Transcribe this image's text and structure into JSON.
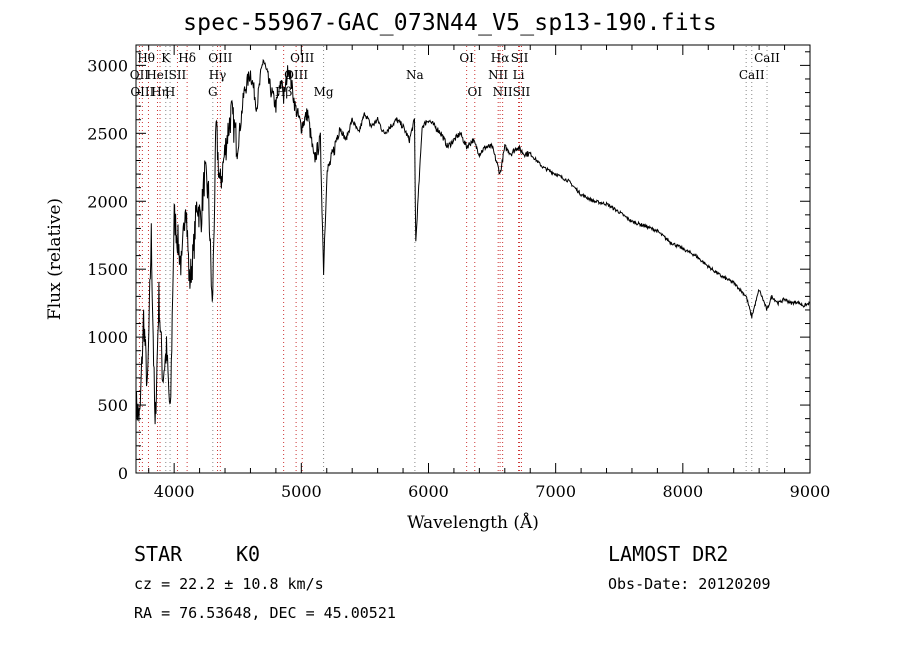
{
  "chart_data": {
    "type": "line",
    "title": "spec-55967-GAC_073N44_V5_sp13-190.fits",
    "xlabel": "Wavelength (Å)",
    "ylabel": "Flux (relative)",
    "xlim": [
      3700,
      9000
    ],
    "ylim": [
      0,
      3150
    ],
    "xticks": [
      4000,
      5000,
      6000,
      7000,
      8000,
      9000
    ],
    "yticks": [
      0,
      500,
      1000,
      1500,
      2000,
      2500,
      3000
    ],
    "grid": false,
    "series": [
      {
        "color": "#000000",
        "x": [
          3700,
          3730,
          3760,
          3790,
          3820,
          3850,
          3880,
          3910,
          3940,
          3970,
          4000,
          4030,
          4060,
          4090,
          4120,
          4150,
          4180,
          4210,
          4240,
          4270,
          4300,
          4330,
          4360,
          4390,
          4420,
          4450,
          4500,
          4550,
          4600,
          4650,
          4700,
          4750,
          4800,
          4850,
          4861,
          4900,
          4950,
          5000,
          5050,
          5100,
          5150,
          5175,
          5200,
          5250,
          5300,
          5350,
          5400,
          5450,
          5500,
          5550,
          5600,
          5650,
          5700,
          5750,
          5800,
          5850,
          5890,
          5900,
          5950,
          6000,
          6050,
          6100,
          6150,
          6200,
          6250,
          6300,
          6350,
          6400,
          6450,
          6500,
          6563,
          6600,
          6650,
          6700,
          6750,
          6800,
          6850,
          6900,
          7000,
          7100,
          7200,
          7300,
          7400,
          7500,
          7600,
          7700,
          7800,
          7900,
          8000,
          8100,
          8200,
          8300,
          8400,
          8498,
          8542,
          8600,
          8662,
          8700,
          8750,
          8800,
          8850,
          8900,
          8950,
          9000
        ],
        "y": [
          500,
          400,
          1150,
          600,
          1750,
          300,
          1300,
          700,
          900,
          400,
          1900,
          1700,
          1500,
          2050,
          1400,
          1600,
          2000,
          1850,
          2200,
          2050,
          1200,
          2550,
          2100,
          2300,
          2500,
          2650,
          2400,
          2800,
          2950,
          2700,
          3050,
          2850,
          2700,
          2900,
          2750,
          3000,
          2700,
          2550,
          2650,
          2300,
          2450,
          1500,
          2200,
          2350,
          2550,
          2450,
          2600,
          2500,
          2650,
          2550,
          2600,
          2500,
          2550,
          2600,
          2550,
          2450,
          2600,
          1700,
          2550,
          2600,
          2550,
          2500,
          2400,
          2450,
          2500,
          2400,
          2450,
          2350,
          2400,
          2400,
          2200,
          2400,
          2350,
          2400,
          2350,
          2350,
          2300,
          2250,
          2200,
          2150,
          2050,
          2000,
          1980,
          1920,
          1850,
          1820,
          1780,
          1700,
          1650,
          1600,
          1520,
          1450,
          1400,
          1300,
          1150,
          1350,
          1200,
          1300,
          1250,
          1280,
          1250,
          1260,
          1230,
          1250
        ]
      }
    ],
    "lines": [
      {
        "x": 3727,
        "labels": [
          "OII"
        ]
      },
      {
        "x": 3750,
        "labels": [
          "OIII"
        ]
      },
      {
        "x": 3798,
        "labels": [
          "Hθ"
        ]
      },
      {
        "x": 3869,
        "labels": [
          "HeI"
        ]
      },
      {
        "x": 3889,
        "labels": [
          "Hη"
        ]
      },
      {
        "x": 3934,
        "labels": [
          "K"
        ]
      },
      {
        "x": 3968,
        "labels": [
          "H"
        ]
      },
      {
        "x": 4026,
        "labels": [
          "SII"
        ]
      },
      {
        "x": 4102,
        "labels": [
          "Hδ"
        ]
      },
      {
        "x": 4304,
        "labels": [
          "G"
        ]
      },
      {
        "x": 4341,
        "labels": [
          "Hγ"
        ]
      },
      {
        "x": 4363,
        "labels": [
          "OIII"
        ]
      },
      {
        "x": 4861,
        "labels": [
          "Hβ"
        ]
      },
      {
        "x": 4959,
        "labels": [
          "OIII"
        ]
      },
      {
        "x": 5007,
        "labels": [
          "OIII"
        ]
      },
      {
        "x": 5175,
        "labels": [
          "Mg"
        ]
      },
      {
        "x": 5893,
        "labels": [
          "Na"
        ]
      },
      {
        "x": 6300,
        "labels": [
          "OI"
        ]
      },
      {
        "x": 6364,
        "labels": [
          "OI"
        ]
      },
      {
        "x": 6548,
        "labels": [
          "NII"
        ]
      },
      {
        "x": 6563,
        "labels": [
          "Hα"
        ]
      },
      {
        "x": 6583,
        "labels": [
          "NII"
        ]
      },
      {
        "x": 6708,
        "labels": [
          "Li"
        ]
      },
      {
        "x": 6716,
        "labels": [
          "SII"
        ]
      },
      {
        "x": 6731,
        "labels": [
          "SII"
        ]
      },
      {
        "x": 8498,
        "labels": [
          "CaII"
        ]
      },
      {
        "x": 8542,
        "labels": [
          "CaII"
        ]
      },
      {
        "x": 8662,
        "labels": [
          "CaII"
        ]
      }
    ],
    "line_label_rows": [
      {
        "text": "Hθ",
        "x": 3780,
        "row": 0
      },
      {
        "text": "K",
        "x": 3934,
        "row": 0
      },
      {
        "text": "Hδ",
        "x": 4102,
        "row": 0
      },
      {
        "text": "OIII",
        "x": 4363,
        "row": 0
      },
      {
        "text": "OIII",
        "x": 5007,
        "row": 0
      },
      {
        "text": "OI",
        "x": 6300,
        "row": 0
      },
      {
        "text": "Hα",
        "x": 6563,
        "row": 0
      },
      {
        "text": "SII",
        "x": 6716,
        "row": 0
      },
      {
        "text": "CaII",
        "x": 8662,
        "row": 0
      },
      {
        "text": "OII",
        "x": 3727,
        "row": 1
      },
      {
        "text": "HeI",
        "x": 3869,
        "row": 1
      },
      {
        "text": "SII",
        "x": 4026,
        "row": 1
      },
      {
        "text": "Hγ",
        "x": 4341,
        "row": 1
      },
      {
        "text": "OIII",
        "x": 4959,
        "row": 1
      },
      {
        "text": "Na",
        "x": 5893,
        "row": 1
      },
      {
        "text": "NII",
        "x": 6548,
        "row": 1
      },
      {
        "text": "Li",
        "x": 6708,
        "row": 1
      },
      {
        "text": "CaII",
        "x": 8542,
        "row": 1
      },
      {
        "text": "OIII",
        "x": 3750,
        "row": 2
      },
      {
        "text": "Hη",
        "x": 3889,
        "row": 2
      },
      {
        "text": "H",
        "x": 3968,
        "row": 2
      },
      {
        "text": "G",
        "x": 4304,
        "row": 2
      },
      {
        "text": "Hβ",
        "x": 4861,
        "row": 2
      },
      {
        "text": "Mg",
        "x": 5175,
        "row": 2
      },
      {
        "text": "OI",
        "x": 6364,
        "row": 2
      },
      {
        "text": "NII",
        "x": 6583,
        "row": 2
      },
      {
        "text": "SII",
        "x": 6731,
        "row": 2
      }
    ],
    "line_colors": {
      "emission": "#cc3333",
      "absorption": "#888888"
    }
  },
  "info": {
    "object_class": "STAR",
    "subclass": "K0",
    "survey": "LAMOST DR2",
    "cz": "cz = 22.2 ± 10.8 km/s",
    "obs_date": "Obs-Date: 20120209",
    "coords": "RA =  76.53648, DEC =  45.00521"
  }
}
